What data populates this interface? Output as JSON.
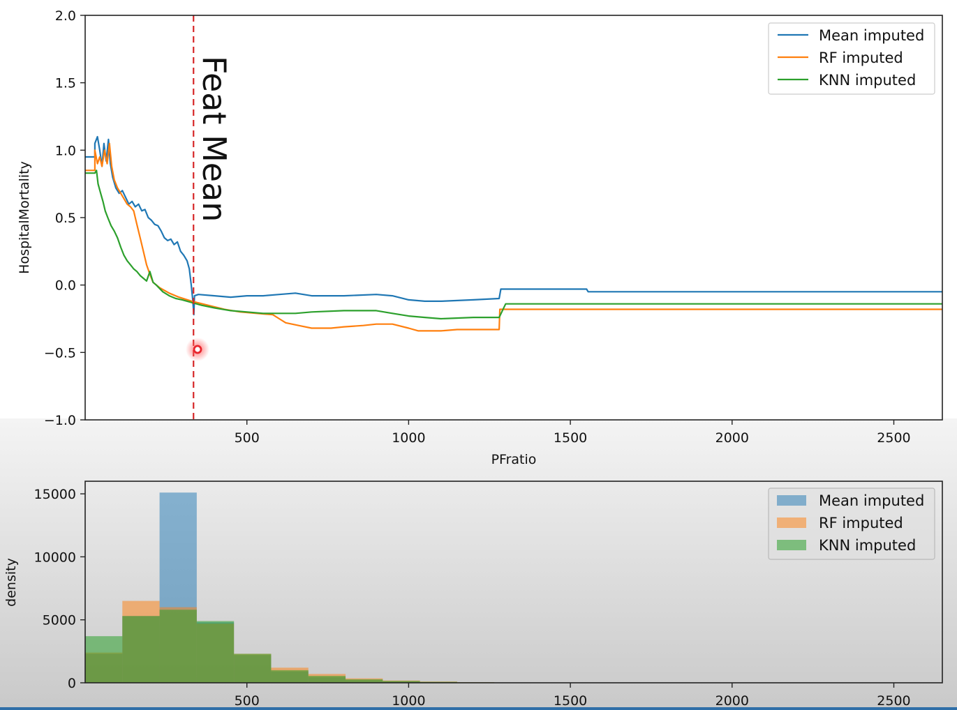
{
  "colors": {
    "mean": "#1f77b4",
    "rf": "#ff7f0e",
    "knn": "#2ca02c",
    "marker_line": "#d62728",
    "cursor": "#e8262d"
  },
  "chart_data": [
    {
      "type": "line",
      "xlabel": "PFratio",
      "ylabel": "HospitalMortality",
      "xlim": [
        0,
        2650
      ],
      "ylim": [
        -1.0,
        2.0
      ],
      "xticks": [
        500,
        1000,
        1500,
        2000,
        2500
      ],
      "xtick_labels": [
        "500",
        "1000",
        "1500",
        "2000",
        "2500"
      ],
      "yticks": [
        -1.0,
        -0.5,
        0.0,
        0.5,
        1.0,
        1.5,
        2.0
      ],
      "ytick_labels": [
        "−1.0",
        "−0.5",
        "0.0",
        "0.5",
        "1.0",
        "1.5",
        "2.0"
      ],
      "grid": false,
      "legend_position": "top-right",
      "annotation": {
        "text": "Feat Mean",
        "x": 335
      },
      "series": [
        {
          "name": "Mean imputed",
          "color_key": "mean",
          "points": [
            [
              0,
              0.95
            ],
            [
              30,
              0.95
            ],
            [
              30,
              1.05
            ],
            [
              38,
              1.1
            ],
            [
              45,
              1.0
            ],
            [
              52,
              0.88
            ],
            [
              58,
              1.05
            ],
            [
              65,
              0.92
            ],
            [
              72,
              1.08
            ],
            [
              78,
              0.9
            ],
            [
              85,
              0.8
            ],
            [
              95,
              0.72
            ],
            [
              105,
              0.68
            ],
            [
              115,
              0.7
            ],
            [
              125,
              0.65
            ],
            [
              135,
              0.6
            ],
            [
              145,
              0.62
            ],
            [
              155,
              0.58
            ],
            [
              165,
              0.6
            ],
            [
              175,
              0.55
            ],
            [
              185,
              0.56
            ],
            [
              195,
              0.5
            ],
            [
              205,
              0.48
            ],
            [
              215,
              0.45
            ],
            [
              225,
              0.44
            ],
            [
              235,
              0.4
            ],
            [
              245,
              0.35
            ],
            [
              255,
              0.33
            ],
            [
              265,
              0.34
            ],
            [
              275,
              0.3
            ],
            [
              285,
              0.32
            ],
            [
              295,
              0.25
            ],
            [
              305,
              0.22
            ],
            [
              315,
              0.18
            ],
            [
              322,
              0.12
            ],
            [
              328,
              0.0
            ],
            [
              333,
              -0.12
            ],
            [
              336,
              -0.22
            ],
            [
              338,
              -0.08
            ],
            [
              350,
              -0.07
            ],
            [
              400,
              -0.08
            ],
            [
              450,
              -0.09
            ],
            [
              500,
              -0.08
            ],
            [
              550,
              -0.08
            ],
            [
              600,
              -0.07
            ],
            [
              650,
              -0.06
            ],
            [
              700,
              -0.08
            ],
            [
              800,
              -0.08
            ],
            [
              900,
              -0.07
            ],
            [
              950,
              -0.08
            ],
            [
              1000,
              -0.11
            ],
            [
              1050,
              -0.12
            ],
            [
              1100,
              -0.12
            ],
            [
              1200,
              -0.11
            ],
            [
              1280,
              -0.1
            ],
            [
              1285,
              -0.03
            ],
            [
              1550,
              -0.03
            ],
            [
              1555,
              -0.05
            ],
            [
              2650,
              -0.05
            ]
          ]
        },
        {
          "name": "RF imputed",
          "color_key": "rf",
          "points": [
            [
              0,
              0.85
            ],
            [
              30,
              0.85
            ],
            [
              30,
              1.0
            ],
            [
              38,
              0.9
            ],
            [
              45,
              0.95
            ],
            [
              52,
              0.88
            ],
            [
              60,
              1.0
            ],
            [
              68,
              0.9
            ],
            [
              75,
              1.05
            ],
            [
              82,
              0.88
            ],
            [
              90,
              0.78
            ],
            [
              100,
              0.72
            ],
            [
              110,
              0.68
            ],
            [
              120,
              0.64
            ],
            [
              130,
              0.6
            ],
            [
              140,
              0.58
            ],
            [
              150,
              0.55
            ],
            [
              160,
              0.45
            ],
            [
              170,
              0.35
            ],
            [
              180,
              0.25
            ],
            [
              190,
              0.15
            ],
            [
              200,
              0.08
            ],
            [
              210,
              0.02
            ],
            [
              230,
              -0.02
            ],
            [
              260,
              -0.06
            ],
            [
              290,
              -0.09
            ],
            [
              330,
              -0.12
            ],
            [
              380,
              -0.15
            ],
            [
              430,
              -0.18
            ],
            [
              480,
              -0.2
            ],
            [
              530,
              -0.21
            ],
            [
              580,
              -0.22
            ],
            [
              600,
              -0.25
            ],
            [
              620,
              -0.28
            ],
            [
              660,
              -0.3
            ],
            [
              700,
              -0.32
            ],
            [
              760,
              -0.32
            ],
            [
              800,
              -0.31
            ],
            [
              860,
              -0.3
            ],
            [
              900,
              -0.29
            ],
            [
              950,
              -0.29
            ],
            [
              1000,
              -0.32
            ],
            [
              1030,
              -0.34
            ],
            [
              1100,
              -0.34
            ],
            [
              1150,
              -0.33
            ],
            [
              1200,
              -0.33
            ],
            [
              1280,
              -0.33
            ],
            [
              1282,
              -0.18
            ],
            [
              2650,
              -0.18
            ]
          ]
        },
        {
          "name": "KNN imputed",
          "color_key": "knn",
          "points": [
            [
              0,
              0.83
            ],
            [
              30,
              0.83
            ],
            [
              35,
              0.85
            ],
            [
              40,
              0.75
            ],
            [
              48,
              0.68
            ],
            [
              55,
              0.62
            ],
            [
              62,
              0.55
            ],
            [
              70,
              0.5
            ],
            [
              80,
              0.44
            ],
            [
              90,
              0.4
            ],
            [
              100,
              0.35
            ],
            [
              110,
              0.28
            ],
            [
              120,
              0.22
            ],
            [
              130,
              0.18
            ],
            [
              140,
              0.15
            ],
            [
              150,
              0.12
            ],
            [
              160,
              0.1
            ],
            [
              170,
              0.07
            ],
            [
              180,
              0.05
            ],
            [
              190,
              0.03
            ],
            [
              200,
              0.1
            ],
            [
              210,
              0.02
            ],
            [
              220,
              0.0
            ],
            [
              240,
              -0.05
            ],
            [
              260,
              -0.08
            ],
            [
              280,
              -0.1
            ],
            [
              300,
              -0.11
            ],
            [
              330,
              -0.13
            ],
            [
              360,
              -0.15
            ],
            [
              400,
              -0.17
            ],
            [
              450,
              -0.19
            ],
            [
              500,
              -0.2
            ],
            [
              550,
              -0.21
            ],
            [
              600,
              -0.21
            ],
            [
              650,
              -0.21
            ],
            [
              700,
              -0.2
            ],
            [
              800,
              -0.19
            ],
            [
              900,
              -0.19
            ],
            [
              950,
              -0.21
            ],
            [
              1000,
              -0.23
            ],
            [
              1050,
              -0.24
            ],
            [
              1100,
              -0.25
            ],
            [
              1200,
              -0.24
            ],
            [
              1280,
              -0.24
            ],
            [
              1300,
              -0.14
            ],
            [
              2650,
              -0.14
            ]
          ]
        }
      ]
    },
    {
      "type": "bar",
      "xlabel": "",
      "ylabel": "density",
      "xlim": [
        0,
        2650
      ],
      "ylim": [
        0,
        16000
      ],
      "xticks": [
        500,
        1000,
        1500,
        2000,
        2500
      ],
      "xtick_labels": [
        "500",
        "1000",
        "1500",
        "2000",
        "2500"
      ],
      "yticks": [
        0,
        5000,
        10000,
        15000
      ],
      "ytick_labels": [
        "0",
        "5000",
        "10000",
        "15000"
      ],
      "grid": false,
      "legend_position": "top-right",
      "bin_edges": [
        0,
        115,
        230,
        345,
        460,
        575,
        690,
        805,
        920,
        1035,
        1150,
        1265
      ],
      "series": [
        {
          "name": "Mean imputed",
          "color_key": "mean",
          "values": [
            2300,
            5300,
            15100,
            4800,
            2200,
            900,
            450,
            200,
            120,
            60,
            30
          ]
        },
        {
          "name": "RF imputed",
          "color_key": "rf",
          "values": [
            2400,
            6500,
            6000,
            4700,
            2300,
            1200,
            700,
            350,
            180,
            100,
            50
          ]
        },
        {
          "name": "KNN imputed",
          "color_key": "knn",
          "values": [
            3700,
            5300,
            5800,
            4900,
            2300,
            1000,
            550,
            280,
            150,
            80,
            40
          ]
        }
      ]
    }
  ]
}
